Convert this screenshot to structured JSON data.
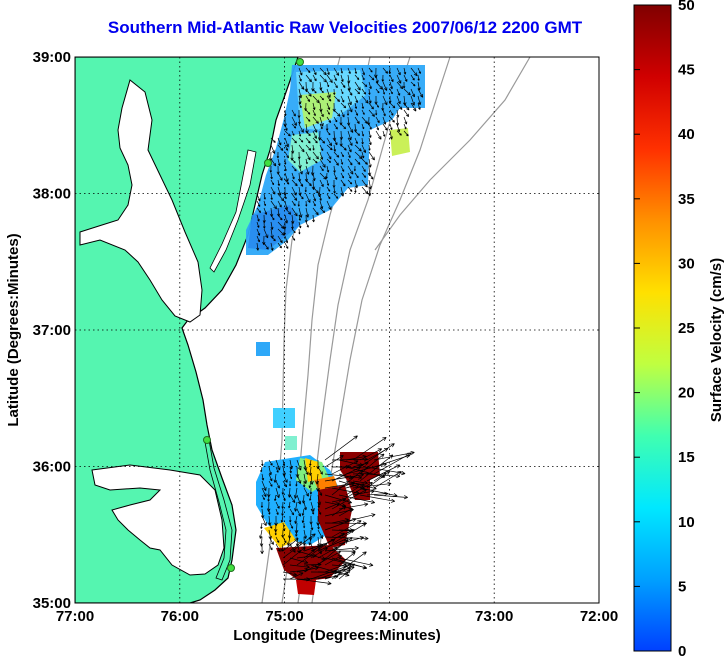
{
  "title": "Southern Mid-Atlantic Raw Velocities 2007/06/12 2200 GMT",
  "xlabel": "Longitude (Degrees:Minutes)",
  "ylabel": "Latitude (Degrees:Minutes)",
  "colorbar": {
    "label": "Surface Velocity (cm/s)",
    "ticks": [
      "0",
      "5",
      "10",
      "15",
      "20",
      "25",
      "30",
      "35",
      "40",
      "45",
      "50"
    ],
    "range": [
      0,
      50
    ],
    "stops": [
      "#0040ff",
      "#00a0ff",
      "#00e8ff",
      "#40ffb0",
      "#c0ff40",
      "#ffe000",
      "#ff9000",
      "#ff3000",
      "#d00000",
      "#800000"
    ]
  },
  "axes": {
    "x_ticks": [
      "77:00",
      "76:00",
      "75:00",
      "74:00",
      "73:00",
      "72:00"
    ],
    "y_ticks": [
      "39:00",
      "38:00",
      "37:00",
      "36:00",
      "35:00"
    ],
    "lon_range": [
      -77,
      -72
    ],
    "lat_range": [
      35,
      39
    ]
  },
  "colors": {
    "land": "#55f5b0",
    "ocean": "#ffffff",
    "bathymetry": "#9a9a9a",
    "grid": "#000000",
    "title": "#0000ee"
  },
  "map": {
    "region": "Southern Mid-Atlantic",
    "grid": "dotted",
    "features": [
      "land",
      "coastline",
      "bathymetry contours",
      "HF radar stations",
      "velocity vectors",
      "velocity color field"
    ]
  }
}
